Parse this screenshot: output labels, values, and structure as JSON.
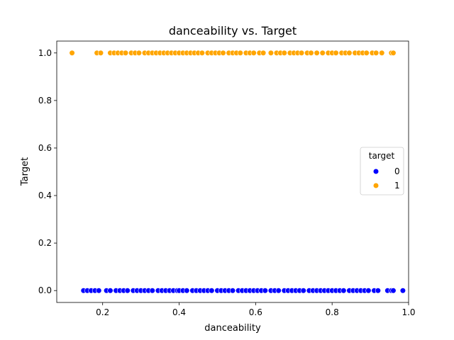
{
  "chart_data": {
    "type": "scatter",
    "title": "danceability vs. Target",
    "xlabel": "danceability",
    "ylabel": "Target",
    "xlim": [
      0.08,
      1.0
    ],
    "ylim": [
      -0.05,
      1.05
    ],
    "xticks": [
      {
        "value": 0.2,
        "label": "0.2"
      },
      {
        "value": 0.4,
        "label": "0.4"
      },
      {
        "value": 0.6,
        "label": "0.6"
      },
      {
        "value": 0.8,
        "label": "0.8"
      },
      {
        "value": 1.0,
        "label": "1.0"
      }
    ],
    "yticks": [
      {
        "value": 0.0,
        "label": "0.0"
      },
      {
        "value": 0.2,
        "label": "0.2"
      },
      {
        "value": 0.4,
        "label": "0.4"
      },
      {
        "value": 0.6,
        "label": "0.6"
      },
      {
        "value": 0.8,
        "label": "0.8"
      },
      {
        "value": 1.0,
        "label": "1.0"
      }
    ],
    "grid": false,
    "legend": {
      "title": "target",
      "placement": "center-right",
      "entries": [
        {
          "label": "0",
          "color": "#0000ff"
        },
        {
          "label": "1",
          "color": "#ffa500"
        }
      ]
    },
    "series": [
      {
        "name": "0",
        "color": "#0000ff",
        "y": 0,
        "x": [
          0.15,
          0.16,
          0.17,
          0.18,
          0.19,
          0.21,
          0.22,
          0.235,
          0.245,
          0.255,
          0.265,
          0.28,
          0.29,
          0.3,
          0.31,
          0.32,
          0.33,
          0.345,
          0.355,
          0.365,
          0.375,
          0.385,
          0.395,
          0.4,
          0.41,
          0.42,
          0.435,
          0.445,
          0.455,
          0.465,
          0.475,
          0.485,
          0.5,
          0.51,
          0.52,
          0.53,
          0.54,
          0.555,
          0.565,
          0.575,
          0.585,
          0.595,
          0.605,
          0.615,
          0.625,
          0.64,
          0.65,
          0.66,
          0.675,
          0.685,
          0.695,
          0.705,
          0.715,
          0.725,
          0.74,
          0.75,
          0.76,
          0.77,
          0.78,
          0.79,
          0.8,
          0.81,
          0.82,
          0.83,
          0.845,
          0.855,
          0.865,
          0.875,
          0.885,
          0.895,
          0.91,
          0.92,
          0.945,
          0.955,
          0.96,
          0.985
        ]
      },
      {
        "name": "1",
        "color": "#ffa500",
        "y": 1,
        "x": [
          0.12,
          0.185,
          0.195,
          0.22,
          0.23,
          0.24,
          0.25,
          0.26,
          0.275,
          0.285,
          0.295,
          0.31,
          0.32,
          0.33,
          0.34,
          0.35,
          0.36,
          0.37,
          0.38,
          0.39,
          0.4,
          0.41,
          0.42,
          0.43,
          0.44,
          0.45,
          0.46,
          0.475,
          0.485,
          0.495,
          0.505,
          0.515,
          0.53,
          0.54,
          0.55,
          0.56,
          0.575,
          0.585,
          0.595,
          0.61,
          0.62,
          0.64,
          0.655,
          0.665,
          0.675,
          0.69,
          0.7,
          0.71,
          0.72,
          0.735,
          0.745,
          0.76,
          0.775,
          0.79,
          0.8,
          0.81,
          0.825,
          0.835,
          0.845,
          0.86,
          0.87,
          0.88,
          0.89,
          0.905,
          0.915,
          0.93,
          0.955,
          0.96
        ]
      }
    ]
  }
}
